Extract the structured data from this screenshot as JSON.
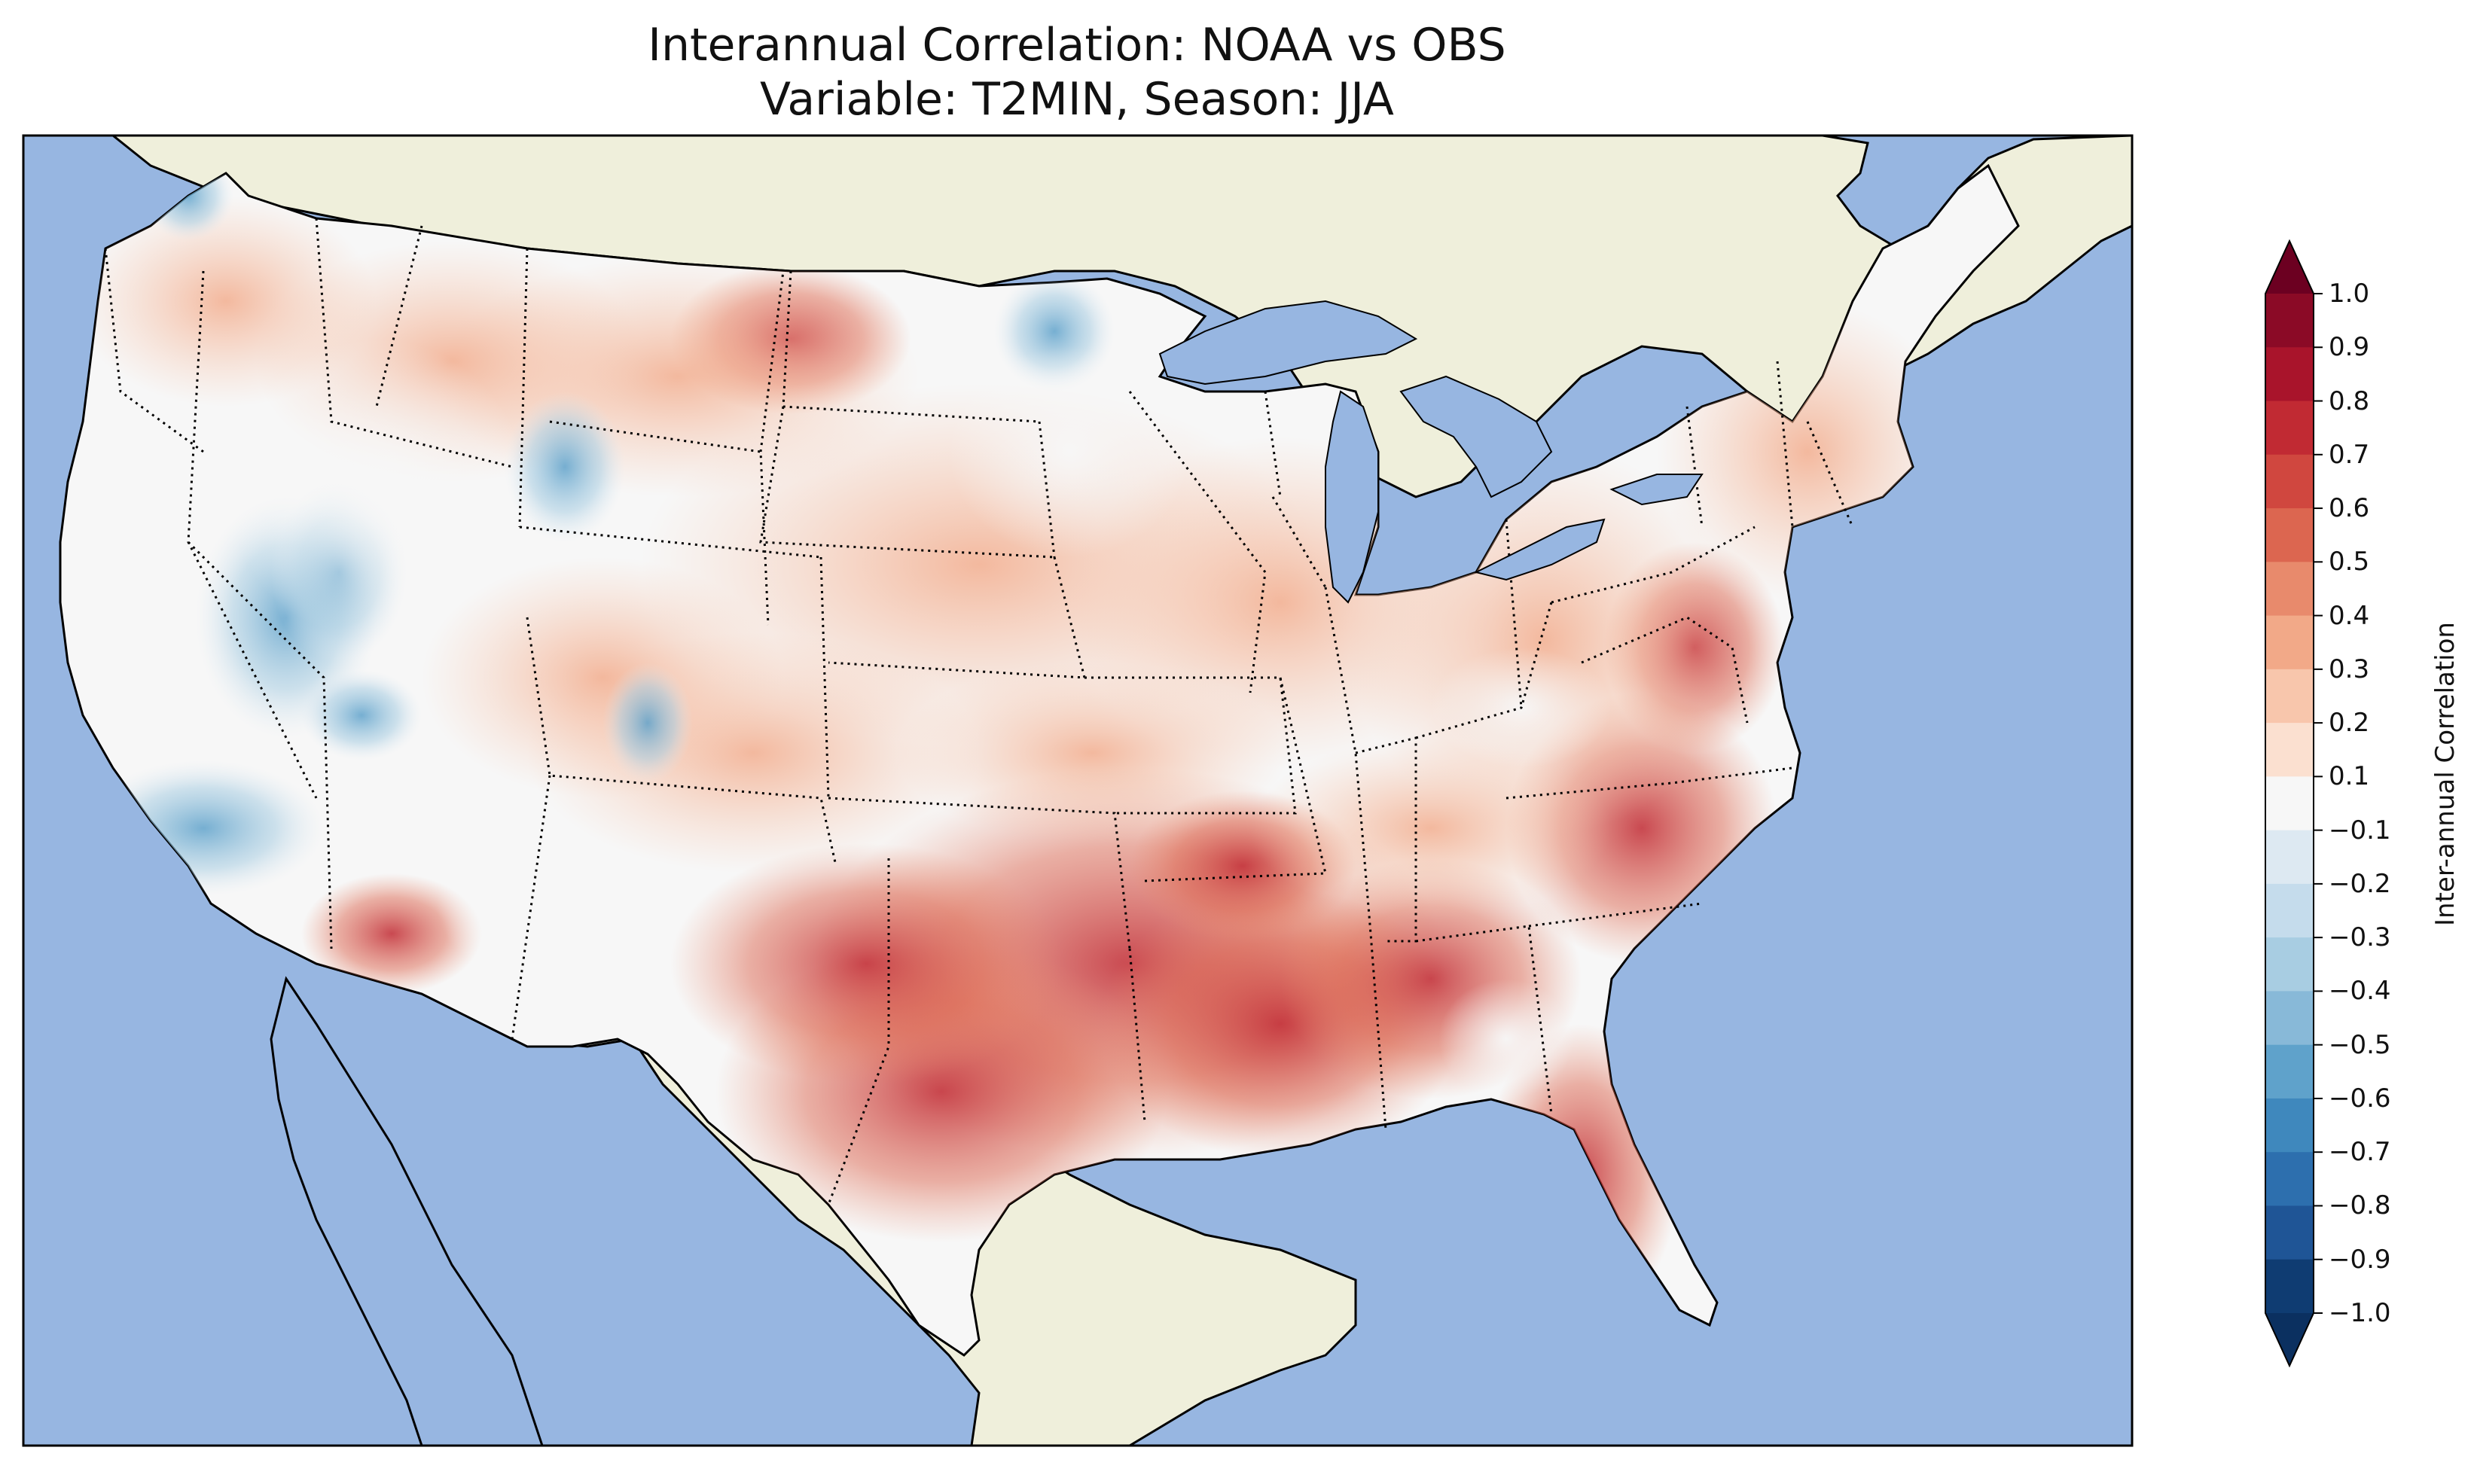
{
  "title": {
    "line1": "Interannual Correlation: NOAA vs OBS",
    "line2": "Variable: T2MIN, Season: JJA"
  },
  "colors": {
    "ocean": "#97b6e1",
    "land_outside": "#efefdb",
    "coastline": "#000000",
    "borders": "#000000",
    "lakes": "#97b6e1"
  },
  "colorbar": {
    "label": "Inter-annual Correlation",
    "ticks": [
      "1.0",
      "0.9",
      "0.8",
      "0.7",
      "0.6",
      "0.5",
      "0.4",
      "0.3",
      "0.2",
      "0.1",
      "−0.1",
      "−0.2",
      "−0.3",
      "−0.4",
      "−0.5",
      "−0.6",
      "−0.7",
      "−0.8",
      "−0.9",
      "−1.0"
    ],
    "levels": [
      1.0,
      0.9,
      0.8,
      0.7,
      0.6,
      0.5,
      0.4,
      0.3,
      0.2,
      0.1,
      -0.1,
      -0.2,
      -0.3,
      -0.4,
      -0.5,
      -0.6,
      -0.7,
      -0.8,
      -0.9,
      -1.0
    ],
    "band_colors": [
      "#8b0a26",
      "#a9142b",
      "#c12a33",
      "#d0473f",
      "#dc6650",
      "#e88a6c",
      "#f2a988",
      "#f8c6ac",
      "#fbe0d0",
      "#f7f7f7",
      "#dde9f2",
      "#c5dcec",
      "#a8cde2",
      "#88b9d8",
      "#5fa2cb",
      "#3f88bd",
      "#2d6fae",
      "#1f5596",
      "#0f3c72"
    ],
    "extend_max_color": "#6c0021",
    "extend_min_color": "#0b3060"
  }
}
